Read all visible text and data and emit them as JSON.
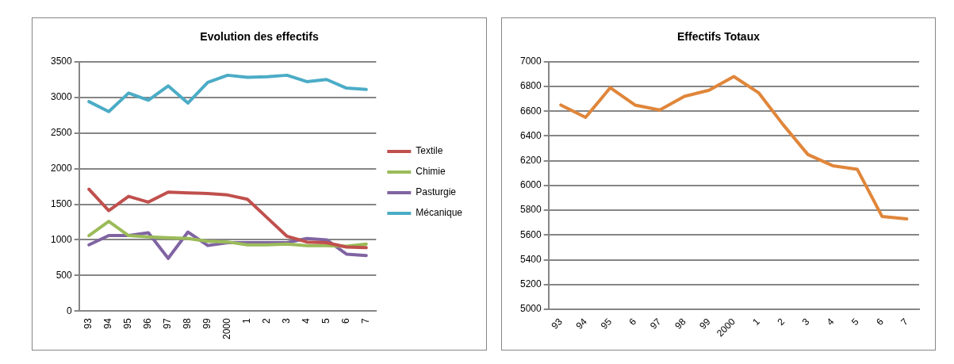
{
  "chart_data": [
    {
      "type": "line",
      "title": "Evolution des effectifs",
      "categories": [
        "93",
        "94",
        "95",
        "96",
        "97",
        "98",
        "99",
        "2000",
        "1",
        "2",
        "3",
        "4",
        "5",
        "6",
        "7"
      ],
      "series": [
        {
          "name": "Textile",
          "color": "#c0504d",
          "values": [
            1710,
            1410,
            1610,
            1530,
            1670,
            1660,
            1650,
            1630,
            1570,
            1310,
            1050,
            970,
            960,
            900,
            890
          ]
        },
        {
          "name": "Chimie",
          "color": "#9bbb59",
          "values": [
            1060,
            1260,
            1060,
            1040,
            1030,
            1020,
            980,
            970,
            930,
            930,
            940,
            920,
            920,
            910,
            940
          ]
        },
        {
          "name": "Pasturgie",
          "color": "#8064a2",
          "values": [
            930,
            1060,
            1060,
            1100,
            740,
            1110,
            920,
            960,
            960,
            960,
            960,
            1020,
            1000,
            800,
            780
          ]
        },
        {
          "name": "Mécanique",
          "color": "#4bacc6",
          "values": [
            2940,
            2800,
            3060,
            2960,
            3160,
            2920,
            3210,
            3310,
            3280,
            3290,
            3310,
            3220,
            3250,
            3130,
            3110
          ]
        }
      ],
      "ylim": [
        0,
        3500
      ],
      "yticks": [
        0,
        500,
        1000,
        1500,
        2000,
        2500,
        3000,
        3500
      ],
      "grid": "y",
      "legend": "right",
      "marker": "none"
    },
    {
      "type": "line",
      "title": "Effectifs Totaux",
      "categories": [
        "93",
        "94",
        "95",
        "6",
        "97",
        "98",
        "99",
        "2000",
        "1",
        "2",
        "3",
        "4",
        "5",
        "6",
        "7"
      ],
      "series": [
        {
          "color": "#e0863a",
          "values": [
            6650,
            6550,
            6790,
            6650,
            6610,
            6720,
            6770,
            6880,
            6750,
            6490,
            6250,
            6160,
            6130,
            5750,
            5730
          ]
        }
      ],
      "ylim": [
        5000,
        7000
      ],
      "yticks": [
        5000,
        5200,
        5400,
        5600,
        5800,
        6000,
        6200,
        6400,
        6600,
        6800,
        7000
      ],
      "grid": "y",
      "legend": false,
      "marker": "none"
    }
  ]
}
